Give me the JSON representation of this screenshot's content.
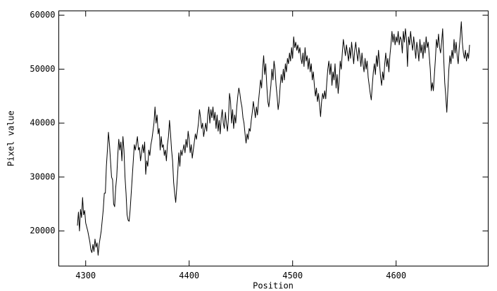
{
  "chart_data": {
    "type": "line",
    "xlabel": "Position",
    "ylabel": "Pixel value",
    "xlim": [
      4274,
      4689
    ],
    "ylim": [
      13500,
      60800
    ],
    "xticks": [
      4300,
      4400,
      4500,
      4600
    ],
    "yticks": [
      20000,
      30000,
      40000,
      50000,
      60000
    ],
    "color": "#000000",
    "x": [
      4292,
      4293,
      4294,
      4295,
      4296,
      4297,
      4298,
      4299,
      4300,
      4302,
      4304,
      4305,
      4306,
      4307,
      4308,
      4309,
      4310,
      4311,
      4312,
      4313,
      4315,
      4317,
      4318,
      4319,
      4320,
      4321,
      4322,
      4323,
      4324,
      4325,
      4326,
      4327,
      4328,
      4329,
      4330,
      4331,
      4332,
      4333,
      4334,
      4335,
      4336,
      4337,
      4338,
      4339,
      4340,
      4341,
      4342,
      4343,
      4345,
      4346,
      4347,
      4348,
      4350,
      4351,
      4352,
      4353,
      4355,
      4356,
      4357,
      4358,
      4359,
      4360,
      4361,
      4362,
      4363,
      4364,
      4365,
      4366,
      4367,
      4368,
      4369,
      4370,
      4371,
      4372,
      4373,
      4374,
      4375,
      4376,
      4377,
      4378,
      4379,
      4380,
      4381,
      4382,
      4383,
      4384,
      4385,
      4386,
      4387,
      4388,
      4389,
      4390,
      4391,
      4392,
      4393,
      4395,
      4396,
      4397,
      4398,
      4399,
      4400,
      4401,
      4402,
      4403,
      4404,
      4405,
      4406,
      4407,
      4409,
      4410,
      4411,
      4412,
      4413,
      4414,
      4416,
      4417,
      4418,
      4419,
      4420,
      4421,
      4422,
      4423,
      4424,
      4425,
      4426,
      4427,
      4428,
      4429,
      4430,
      4431,
      4432,
      4433,
      4434,
      4435,
      4436,
      4437,
      4438,
      4439,
      4440,
      4441,
      4442,
      4443,
      4444,
      4445,
      4446,
      4447,
      4448,
      4449,
      4450,
      4451,
      4452,
      4453,
      4454,
      4455,
      4456,
      4457,
      4458,
      4459,
      4460,
      4461,
      4462,
      4463,
      4464,
      4465,
      4466,
      4467,
      4468,
      4469,
      4470,
      4471,
      4472,
      4473,
      4474,
      4475,
      4476,
      4477,
      4478,
      4479,
      4480,
      4481,
      4482,
      4483,
      4484,
      4485,
      4486,
      4487,
      4488,
      4489,
      4490,
      4491,
      4492,
      4493,
      4494,
      4495,
      4496,
      4497,
      4498,
      4499,
      4500,
      4501,
      4502,
      4503,
      4504,
      4505,
      4506,
      4507,
      4508,
      4509,
      4510,
      4511,
      4512,
      4513,
      4514,
      4515,
      4516,
      4517,
      4518,
      4519,
      4520,
      4521,
      4522,
      4523,
      4524,
      4525,
      4526,
      4527,
      4528,
      4529,
      4530,
      4531,
      4532,
      4533,
      4534,
      4535,
      4536,
      4537,
      4538,
      4539,
      4540,
      4541,
      4542,
      4543,
      4544,
      4545,
      4546,
      4547,
      4548,
      4549,
      4550,
      4551,
      4552,
      4553,
      4554,
      4555,
      4556,
      4557,
      4558,
      4559,
      4560,
      4561,
      4562,
      4563,
      4564,
      4565,
      4566,
      4567,
      4568,
      4569,
      4570,
      4571,
      4572,
      4573,
      4574,
      4575,
      4576,
      4577,
      4578,
      4579,
      4580,
      4581,
      4582,
      4583,
      4584,
      4585,
      4586,
      4587,
      4588,
      4589,
      4590,
      4591,
      4592,
      4593,
      4594,
      4595,
      4596,
      4597,
      4598,
      4599,
      4600,
      4601,
      4602,
      4603,
      4604,
      4605,
      4606,
      4607,
      4608,
      4609,
      4610,
      4611,
      4612,
      4613,
      4614,
      4615,
      4616,
      4617,
      4618,
      4619,
      4620,
      4621,
      4622,
      4623,
      4624,
      4625,
      4626,
      4627,
      4628,
      4629,
      4630,
      4631,
      4632,
      4633,
      4634,
      4635,
      4636,
      4637,
      4638,
      4639,
      4640,
      4641,
      4642,
      4643,
      4644,
      4645,
      4646,
      4647,
      4648,
      4649,
      4650,
      4651,
      4652,
      4653,
      4654,
      4655,
      4656,
      4657,
      4658,
      4659,
      4660,
      4661,
      4662,
      4663,
      4664,
      4665,
      4666,
      4667,
      4668,
      4669,
      4670,
      4671
    ],
    "values": [
      21000,
      23500,
      20000,
      24000,
      22500,
      26200,
      23000,
      23800,
      21500,
      20000,
      18000,
      16500,
      16000,
      17500,
      16200,
      18500,
      17000,
      17800,
      15500,
      17500,
      20000,
      24000,
      27000,
      27000,
      32000,
      35000,
      38300,
      36000,
      33000,
      30000,
      29500,
      25000,
      24500,
      28000,
      30000,
      34000,
      37000,
      35000,
      36500,
      33000,
      37500,
      35000,
      30000,
      27000,
      23000,
      22000,
      21800,
      24000,
      30000,
      33000,
      36000,
      35000,
      37500,
      35000,
      35500,
      33000,
      36000,
      34500,
      36500,
      30500,
      33000,
      32000,
      35000,
      34000,
      36000,
      37000,
      38500,
      40000,
      43000,
      40000,
      41500,
      38000,
      39000,
      35000,
      37500,
      35500,
      36000,
      34000,
      35000,
      33000,
      36000,
      37500,
      40500,
      38000,
      35000,
      33000,
      29000,
      27000,
      25300,
      28000,
      31000,
      34500,
      32000,
      35000,
      34000,
      36000,
      34500,
      37000,
      35500,
      38500,
      37000,
      34500,
      36000,
      33500,
      35000,
      36500,
      38000,
      37000,
      40000,
      42500,
      41000,
      39000,
      40000,
      37500,
      40000,
      38500,
      41500,
      43000,
      40000,
      42500,
      41000,
      43000,
      40500,
      42000,
      39000,
      41500,
      38500,
      40500,
      38000,
      41000,
      42500,
      40000,
      39000,
      42000,
      40000,
      38500,
      41000,
      45500,
      44000,
      40000,
      42500,
      39000,
      41500,
      40000,
      43000,
      45000,
      46500,
      45500,
      44000,
      43000,
      41000,
      40000,
      38000,
      36300,
      38000,
      37000,
      39000,
      38500,
      40500,
      42000,
      44000,
      42500,
      41000,
      43000,
      41500,
      44000,
      46000,
      48000,
      46500,
      50000,
      52500,
      49000,
      51000,
      47000,
      44000,
      43000,
      45000,
      47000,
      50000,
      48000,
      51500,
      50000,
      47000,
      45000,
      42500,
      44000,
      47000,
      49000,
      47500,
      50000,
      48000,
      51000,
      49500,
      52000,
      51000,
      53000,
      51500,
      54000,
      52000,
      56000,
      54000,
      55000,
      53500,
      54500,
      53000,
      54000,
      52000,
      51000,
      53000,
      50500,
      54000,
      51500,
      52500,
      50000,
      52000,
      49500,
      51000,
      48000,
      49500,
      47000,
      45000,
      46500,
      44000,
      45500,
      43500,
      41200,
      44000,
      45500,
      44500,
      46000,
      44500,
      47500,
      50000,
      51500,
      49000,
      51000,
      47000,
      49500,
      48000,
      51000,
      46500,
      49000,
      45500,
      48000,
      51500,
      50000,
      53000,
      55500,
      54000,
      52500,
      54500,
      53000,
      51500,
      54000,
      52000,
      55000,
      53000,
      51000,
      53500,
      55000,
      53000,
      51500,
      54000,
      52500,
      50500,
      53000,
      51000,
      49500,
      52000,
      50000,
      51500,
      48500,
      47000,
      45500,
      44300,
      47000,
      49500,
      51000,
      49000,
      52500,
      50500,
      53500,
      51000,
      48500,
      47000,
      49500,
      48000,
      51000,
      53000,
      50500,
      52000,
      49500,
      52500,
      54500,
      57000,
      55000,
      56500,
      54500,
      56000,
      55000,
      57000,
      54500,
      56000,
      55500,
      53000,
      57000,
      55000,
      57500,
      55500,
      50500,
      56000,
      54500,
      57000,
      55000,
      53500,
      56000,
      54000,
      52000,
      55000,
      53500,
      51500,
      55500,
      53000,
      54500,
      52000,
      55000,
      53000,
      56000,
      54000,
      55000,
      52500,
      50000,
      46000,
      47500,
      46000,
      49000,
      52000,
      55500,
      54000,
      56500,
      54000,
      53000,
      55000,
      57500,
      52000,
      47500,
      45000,
      42000,
      46000,
      50000,
      52500,
      51000,
      53500,
      52000,
      55500,
      53000,
      55000,
      52500,
      51000,
      54000,
      56000,
      58800,
      55000,
      53000,
      52000,
      53500,
      51500,
      53000,
      52000,
      54500
    ]
  }
}
